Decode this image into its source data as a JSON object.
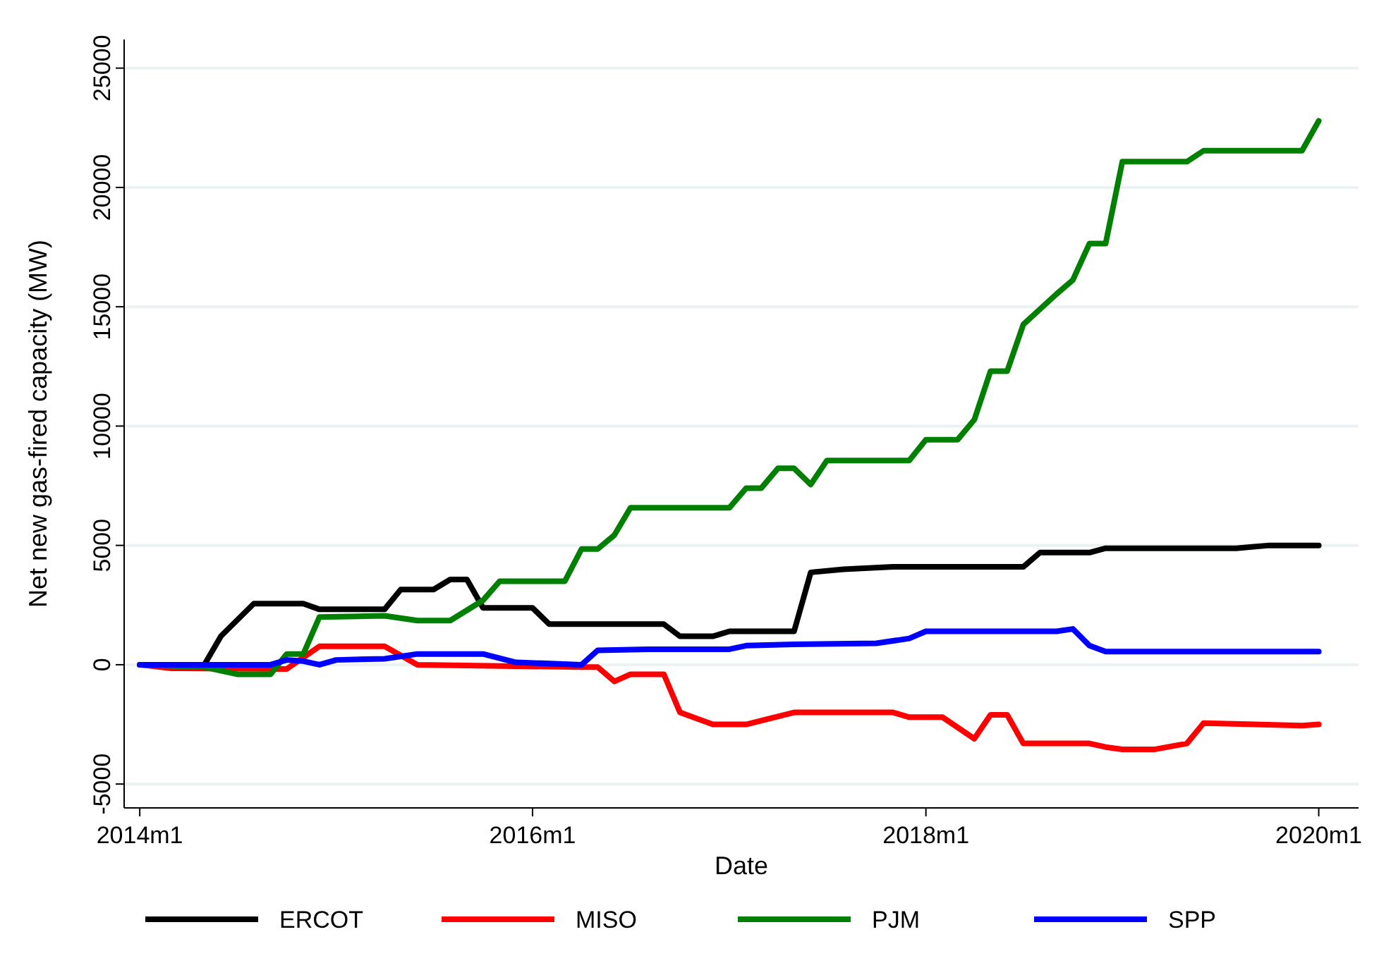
{
  "chart_data": {
    "type": "line",
    "xlabel": "Date",
    "ylabel": "Net new gas-fired capacity (MW)",
    "xlim": [
      "2013-12-03",
      "2020-03-15"
    ],
    "ylim": [
      -6000,
      26200
    ],
    "xticks": [
      {
        "value": "2014-01",
        "label": "2014m1"
      },
      {
        "value": "2016-01",
        "label": "2016m1"
      },
      {
        "value": "2018-01",
        "label": "2018m1"
      },
      {
        "value": "2020-01",
        "label": "2020m1"
      }
    ],
    "yticks": [
      -5000,
      0,
      5000,
      10000,
      15000,
      20000,
      25000
    ],
    "grid": "y",
    "legend": "bottom",
    "line_style": "solid",
    "marker": "none",
    "series": [
      {
        "name": "ERCOT",
        "color": "#000000",
        "x": [
          "2014-01",
          "2014-05",
          "2014-06",
          "2014-08",
          "2014-11",
          "2014-12",
          "2015-04",
          "2015-05",
          "2015-07",
          "2015-08",
          "2015-09",
          "2015-10",
          "2016-01",
          "2016-02",
          "2016-06",
          "2016-09",
          "2016-10",
          "2016-12",
          "2017-01",
          "2017-05",
          "2017-06",
          "2017-08",
          "2017-11",
          "2018-07",
          "2018-08",
          "2018-11",
          "2018-12",
          "2019-08",
          "2019-10",
          "2020-01"
        ],
        "values": [
          0,
          0,
          1200,
          2560,
          2560,
          2320,
          2320,
          3150,
          3150,
          3570,
          3570,
          2380,
          2380,
          1700,
          1700,
          1700,
          1190,
          1190,
          1400,
          1400,
          3870,
          4000,
          4100,
          4100,
          4700,
          4700,
          4880,
          4880,
          5000,
          5000
        ]
      },
      {
        "name": "MISO",
        "color": "#ff0000",
        "x": [
          "2014-01",
          "2014-03",
          "2014-10",
          "2014-12",
          "2015-04",
          "2015-06",
          "2016-04",
          "2016-05",
          "2016-06",
          "2016-07",
          "2016-09",
          "2016-10",
          "2016-12",
          "2017-02",
          "2017-05",
          "2017-11",
          "2017-12",
          "2018-02",
          "2018-04",
          "2018-05",
          "2018-06",
          "2018-07",
          "2018-11",
          "2018-12",
          "2019-01",
          "2019-03",
          "2019-05",
          "2019-06",
          "2019-12",
          "2020-01"
        ],
        "values": [
          0,
          -150,
          -180,
          770,
          770,
          0,
          -100,
          -100,
          -700,
          -400,
          -400,
          -2000,
          -2500,
          -2500,
          -2000,
          -2000,
          -2200,
          -2200,
          -3100,
          -2100,
          -2100,
          -3300,
          -3300,
          -3450,
          -3550,
          -3550,
          -3300,
          -2450,
          -2550,
          -2500
        ]
      },
      {
        "name": "PJM",
        "color": "#008000",
        "x": [
          "2014-01",
          "2014-05",
          "2014-07",
          "2014-09",
          "2014-10",
          "2014-11",
          "2014-12",
          "2015-04",
          "2015-06",
          "2015-08",
          "2015-10",
          "2015-11",
          "2016-03",
          "2016-04",
          "2016-05",
          "2016-06",
          "2016-07",
          "2017-01",
          "2017-02",
          "2017-03",
          "2017-04",
          "2017-05",
          "2017-06",
          "2017-07",
          "2017-12",
          "2018-01",
          "2018-03",
          "2018-04",
          "2018-05",
          "2018-06",
          "2018-07",
          "2018-09",
          "2018-10",
          "2018-11",
          "2018-12",
          "2019-01",
          "2019-05",
          "2019-06",
          "2019-12",
          "2020-01"
        ],
        "values": [
          0,
          -100,
          -400,
          -400,
          450,
          450,
          2000,
          2050,
          1850,
          1850,
          2700,
          3500,
          3500,
          4850,
          4850,
          5430,
          6580,
          6580,
          7400,
          7400,
          8230,
          8230,
          7550,
          8560,
          8560,
          9430,
          9430,
          10270,
          12300,
          12300,
          14260,
          15540,
          16120,
          17650,
          17650,
          21080,
          21080,
          21540,
          21540,
          22790
        ]
      },
      {
        "name": "SPP",
        "color": "#0000ff",
        "x": [
          "2014-01",
          "2014-09",
          "2014-10",
          "2014-11",
          "2014-12",
          "2015-01",
          "2015-04",
          "2015-06",
          "2015-10",
          "2015-12",
          "2016-04",
          "2016-05",
          "2016-08",
          "2017-01",
          "2017-02",
          "2017-05",
          "2017-10",
          "2017-12",
          "2018-01",
          "2018-09",
          "2018-10",
          "2018-11",
          "2018-12",
          "2020-01"
        ],
        "values": [
          0,
          0,
          200,
          150,
          0,
          200,
          250,
          450,
          450,
          100,
          0,
          600,
          650,
          650,
          800,
          850,
          900,
          1100,
          1400,
          1400,
          1500,
          800,
          550,
          550
        ]
      }
    ]
  }
}
